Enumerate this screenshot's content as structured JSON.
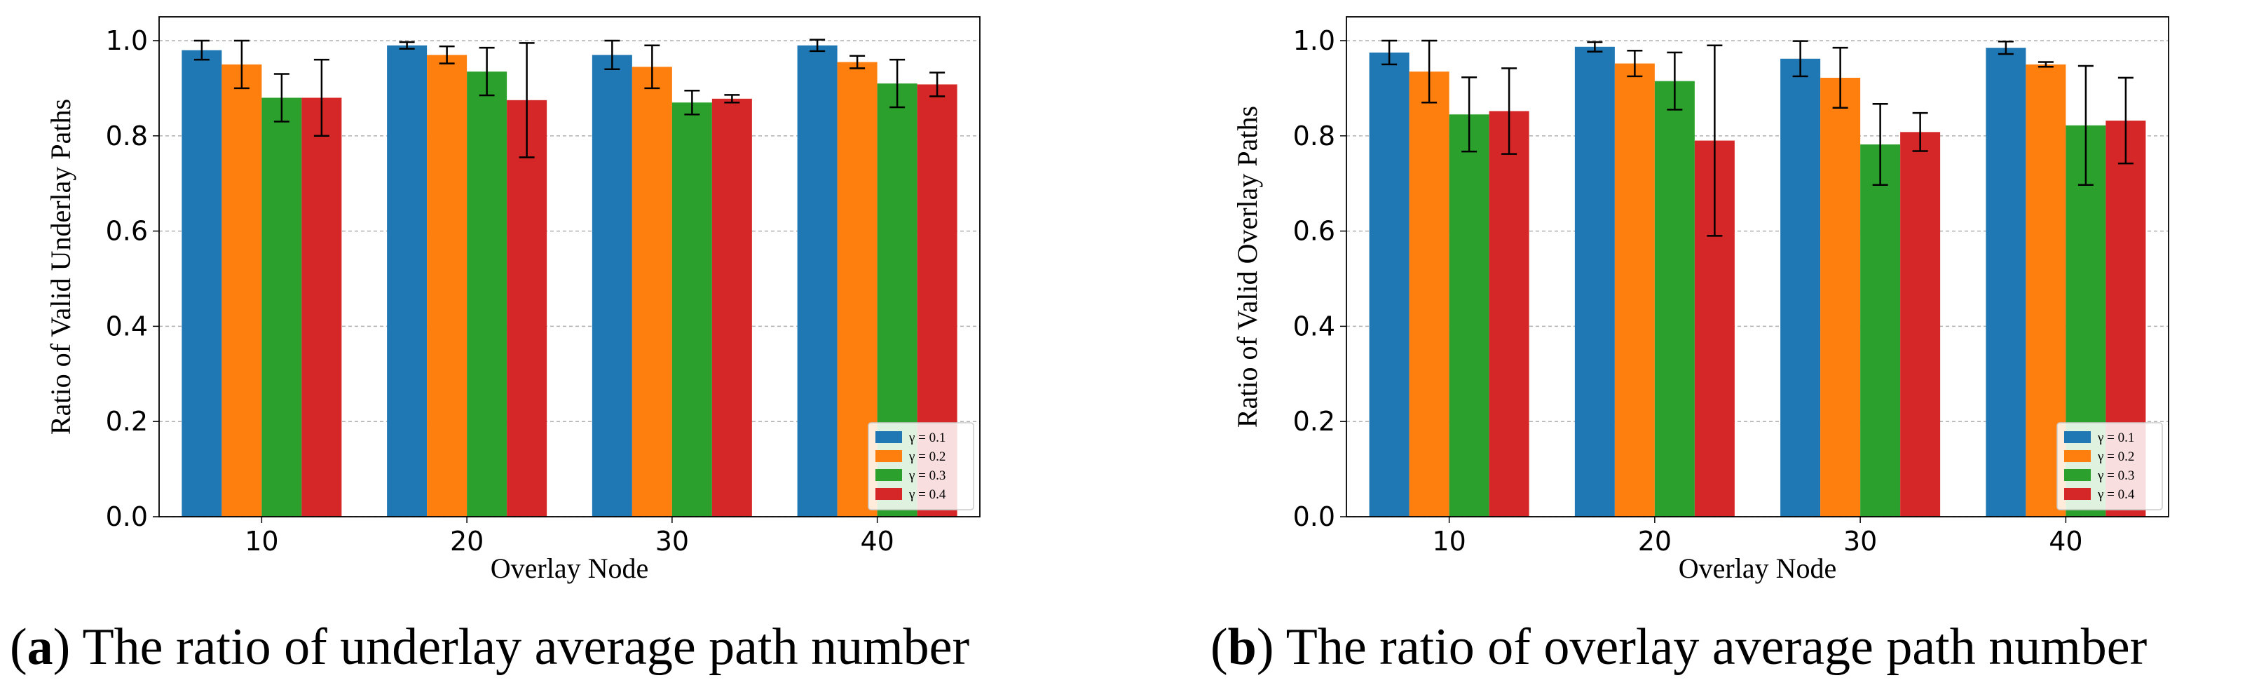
{
  "chart_data": [
    {
      "type": "bar",
      "categories": [
        "10",
        "20",
        "30",
        "40"
      ],
      "xlabel": "Overlay Node",
      "ylabel": "Ratio of Valid Underlay Paths",
      "ylim": [
        0,
        1.05
      ],
      "yticks": [
        "0.0",
        "0.2",
        "0.4",
        "0.6",
        "0.8",
        "1.0"
      ],
      "grid": true,
      "legend_position": "bottom-right",
      "series": [
        {
          "name": "γ = 0.1",
          "color": "#1f77b4",
          "values": [
            0.98,
            0.99,
            0.97,
            0.99
          ],
          "errors": [
            0.02,
            0.007,
            0.03,
            0.012
          ]
        },
        {
          "name": "γ = 0.2",
          "color": "#ff7f0e",
          "values": [
            0.95,
            0.97,
            0.945,
            0.955
          ],
          "errors": [
            0.05,
            0.018,
            0.045,
            0.013
          ]
        },
        {
          "name": "γ = 0.3",
          "color": "#2ca02c",
          "values": [
            0.88,
            0.935,
            0.87,
            0.91
          ],
          "errors": [
            0.05,
            0.05,
            0.025,
            0.05
          ]
        },
        {
          "name": "γ = 0.4",
          "color": "#d62728",
          "values": [
            0.88,
            0.875,
            0.878,
            0.908
          ],
          "errors": [
            0.08,
            0.12,
            0.008,
            0.025
          ]
        }
      ],
      "caption_label": "a",
      "caption_text": "The ratio of underlay average path number"
    },
    {
      "type": "bar",
      "categories": [
        "10",
        "20",
        "30",
        "40"
      ],
      "xlabel": "Overlay Node",
      "ylabel": "Ratio of Valid Overlay Paths",
      "ylim": [
        0,
        1.05
      ],
      "yticks": [
        "0.0",
        "0.2",
        "0.4",
        "0.6",
        "0.8",
        "1.0"
      ],
      "grid": true,
      "legend_position": "bottom-right",
      "series": [
        {
          "name": "γ = 0.1",
          "color": "#1f77b4",
          "values": [
            0.975,
            0.987,
            0.962,
            0.985
          ],
          "errors": [
            0.025,
            0.01,
            0.037,
            0.013
          ]
        },
        {
          "name": "γ = 0.2",
          "color": "#ff7f0e",
          "values": [
            0.935,
            0.952,
            0.922,
            0.95
          ],
          "errors": [
            0.065,
            0.027,
            0.063,
            0.005
          ]
        },
        {
          "name": "γ = 0.3",
          "color": "#2ca02c",
          "values": [
            0.845,
            0.915,
            0.782,
            0.822
          ],
          "errors": [
            0.078,
            0.06,
            0.085,
            0.125
          ]
        },
        {
          "name": "γ = 0.4",
          "color": "#d62728",
          "values": [
            0.852,
            0.79,
            0.808,
            0.832
          ],
          "errors": [
            0.09,
            0.2,
            0.04,
            0.09
          ]
        }
      ],
      "caption_label": "b",
      "caption_text": "The ratio of overlay average path number"
    }
  ]
}
